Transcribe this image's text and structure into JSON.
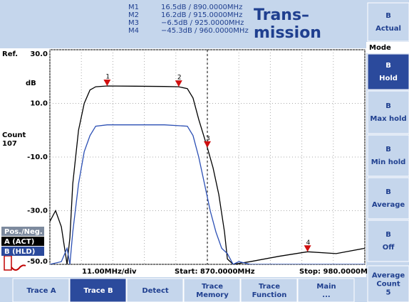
{
  "header": {
    "markers": [
      {
        "name": "M1",
        "reading": "16.5dB / 890.0000MHz"
      },
      {
        "name": "M2",
        "reading": "16.2dB / 915.0000MHz"
      },
      {
        "name": "M3",
        "reading": "−6.5dB / 925.0000MHz"
      },
      {
        "name": "M4",
        "reading": "−45.3dB / 960.0000MHz"
      }
    ],
    "title_lines": [
      "Trans–",
      "mission"
    ]
  },
  "plot": {
    "ref_label": "Ref.",
    "unit": "dB",
    "count_label": "Count",
    "count": 107,
    "badges": [
      "Pos./Neg.",
      "A (ACT)",
      "B (HLD)"
    ],
    "xlim": [
      870,
      980
    ],
    "ylim": [
      -50,
      30
    ],
    "xticks": [
      870,
      881,
      892,
      903,
      914,
      925,
      936,
      947,
      958,
      969,
      980
    ],
    "yticks": [
      {
        "value": 30,
        "label": "30.0"
      },
      {
        "value": 10,
        "label": "10.0"
      },
      {
        "value": -10,
        "label": "-10.0"
      },
      {
        "value": -30,
        "label": "-30.0"
      },
      {
        "value": -50,
        "label": "-50.0"
      }
    ],
    "grid": true,
    "cursor_x": 925,
    "traces": [
      {
        "color": "#000000",
        "x": [
          870,
          872,
          874,
          876,
          877,
          878,
          880,
          882,
          884,
          886,
          890,
          900,
          910,
          915,
          918,
          920,
          922,
          924,
          925,
          927,
          929,
          931,
          932,
          934,
          940,
          950,
          960,
          970,
          980
        ],
        "y": [
          -34,
          -30,
          -36,
          -50,
          -40,
          -20,
          0,
          10,
          15,
          16.2,
          16.5,
          16.4,
          16.3,
          16.2,
          15.5,
          12,
          4,
          -3,
          -6.5,
          -14,
          -24,
          -38,
          -48,
          -50,
          -49,
          -47,
          -45.3,
          -46,
          -44
        ]
      },
      {
        "color": "#2b4fb4",
        "x": [
          870,
          874,
          876,
          877,
          878,
          880,
          882,
          884,
          886,
          890,
          900,
          910,
          918,
          920,
          922,
          924,
          926,
          928,
          930,
          932,
          934,
          936,
          940,
          960,
          980
        ],
        "y": [
          -50,
          -49,
          -44,
          -50,
          -38,
          -20,
          -8,
          -2,
          1.5,
          2,
          2,
          2,
          1.5,
          -2,
          -10,
          -20,
          -30,
          -38,
          -44,
          -46,
          -50,
          -49,
          -50,
          -50,
          -50
        ]
      }
    ],
    "markers": [
      {
        "label": "1",
        "x": 890,
        "y": 16.5
      },
      {
        "label": "2",
        "x": 915,
        "y": 16.2
      },
      {
        "label": "3",
        "x": 925,
        "y": -6.5
      },
      {
        "label": "4",
        "x": 960,
        "y": -45.3
      }
    ],
    "status": [
      "11.00MHz/div",
      "Start: 870.0000MHz",
      "Stop: 980.0000MHz"
    ]
  },
  "softkeys": {
    "mode_label": "Mode",
    "keys": [
      {
        "lines": [
          "B",
          "Actual"
        ]
      },
      {
        "lines": [
          "B",
          "Hold"
        ],
        "selected": true
      },
      {
        "lines": [
          "B",
          "Max hold"
        ]
      },
      {
        "lines": [
          "B",
          "Min hold"
        ]
      },
      {
        "lines": [
          "B",
          "Average"
        ]
      },
      {
        "lines": [
          "B",
          "Off"
        ]
      },
      {
        "lines": [
          "Average",
          "Count",
          "5"
        ]
      }
    ]
  },
  "tabs": [
    {
      "lines": [
        "Trace A"
      ]
    },
    {
      "lines": [
        "Trace B"
      ],
      "selected": true
    },
    {
      "lines": [
        "Detect"
      ]
    },
    {
      "lines": [
        "Trace",
        "Memory"
      ]
    },
    {
      "lines": [
        "Trace",
        "Function"
      ]
    },
    {
      "lines": [
        "Main",
        "..."
      ]
    }
  ]
}
